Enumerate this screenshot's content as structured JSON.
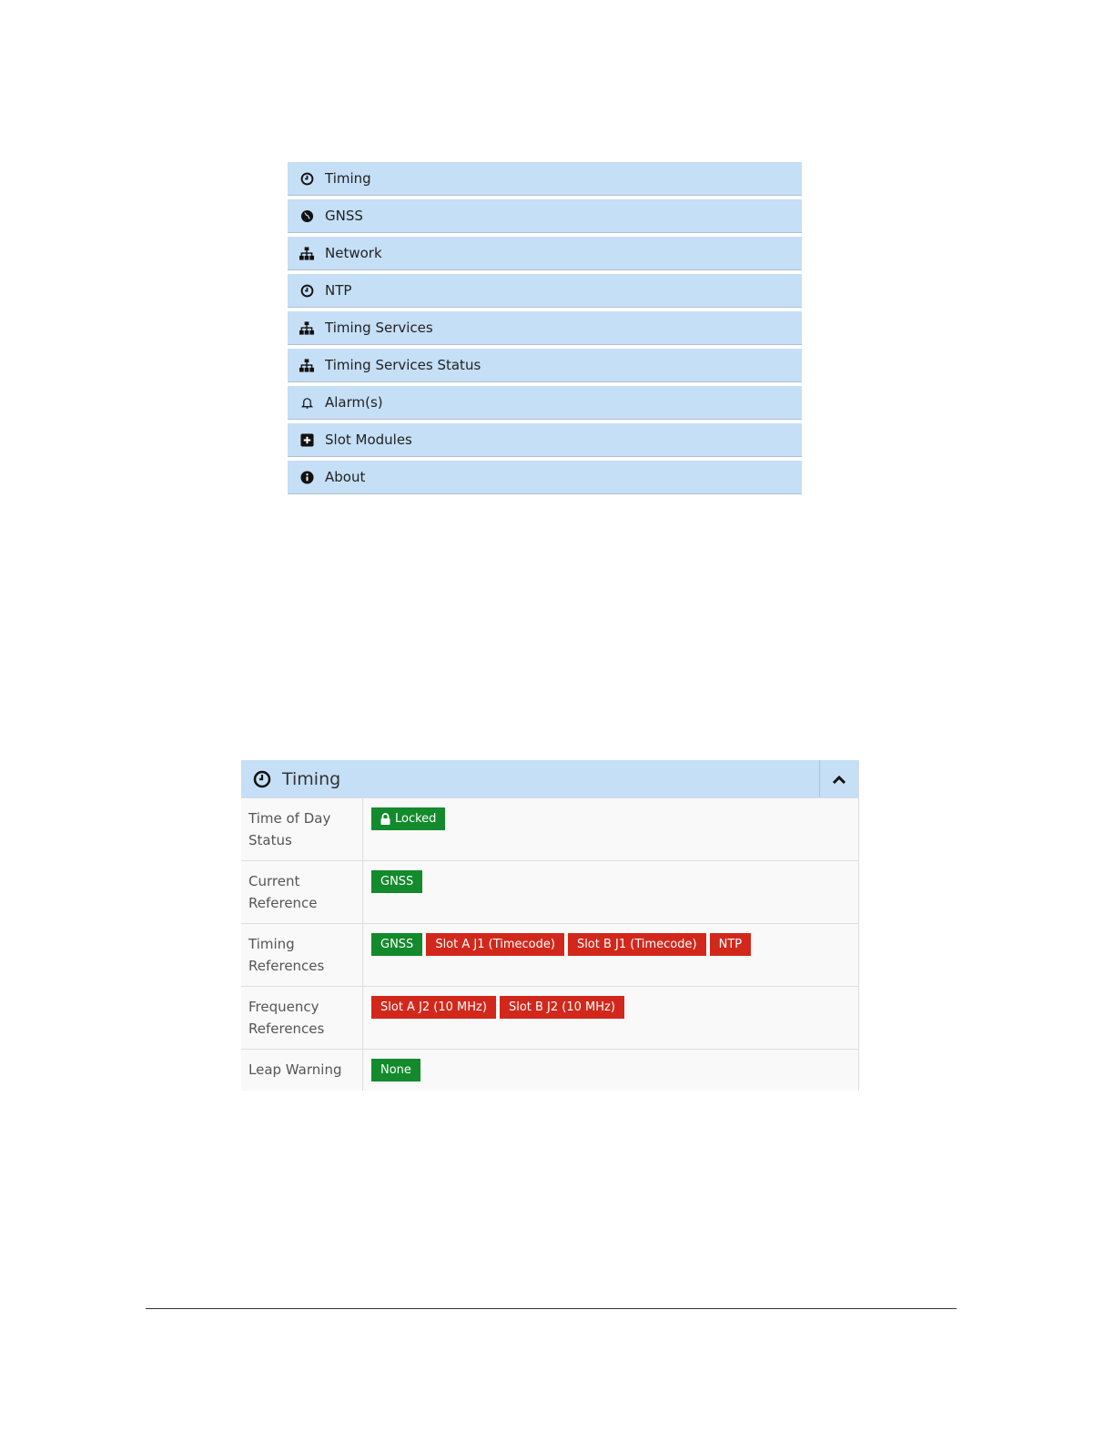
{
  "menu": {
    "items": [
      {
        "label": "Timing",
        "icon": "clock-icon"
      },
      {
        "label": "GNSS",
        "icon": "globe-icon"
      },
      {
        "label": "Network",
        "icon": "sitemap-icon"
      },
      {
        "label": "NTP",
        "icon": "clock-icon"
      },
      {
        "label": "Timing Services",
        "icon": "sitemap-icon"
      },
      {
        "label": "Timing Services Status",
        "icon": "sitemap-icon"
      },
      {
        "label": "Alarm(s)",
        "icon": "bell-icon"
      },
      {
        "label": "Slot Modules",
        "icon": "plus-square-icon"
      },
      {
        "label": "About",
        "icon": "info-circle-icon"
      }
    ]
  },
  "panel": {
    "title": "Timing",
    "rows": [
      {
        "label": "Time of Day Status",
        "badges": [
          {
            "text": "Locked",
            "color": "#138a2c",
            "icon": "lock-icon"
          }
        ]
      },
      {
        "label": "Current Reference",
        "badges": [
          {
            "text": "GNSS",
            "color": "#138a2c"
          }
        ]
      },
      {
        "label": "Timing References",
        "badges": [
          {
            "text": "GNSS",
            "color": "#138a2c"
          },
          {
            "text": "Slot A J1 (Timecode)",
            "color": "#d2281c"
          },
          {
            "text": "Slot B J1 (Timecode)",
            "color": "#d2281c"
          },
          {
            "text": "NTP",
            "color": "#d2281c"
          }
        ]
      },
      {
        "label": "Frequency References",
        "badges": [
          {
            "text": "Slot A J2 (10 MHz)",
            "color": "#d2281c"
          },
          {
            "text": "Slot B J2 (10 MHz)",
            "color": "#d2281c"
          }
        ]
      },
      {
        "label": "Leap Warning",
        "badges": [
          {
            "text": "None",
            "color": "#138a2c"
          }
        ]
      }
    ]
  },
  "colors": {
    "menu_bg": "#c5dff6",
    "ok": "#138a2c",
    "fault": "#d2281c"
  }
}
